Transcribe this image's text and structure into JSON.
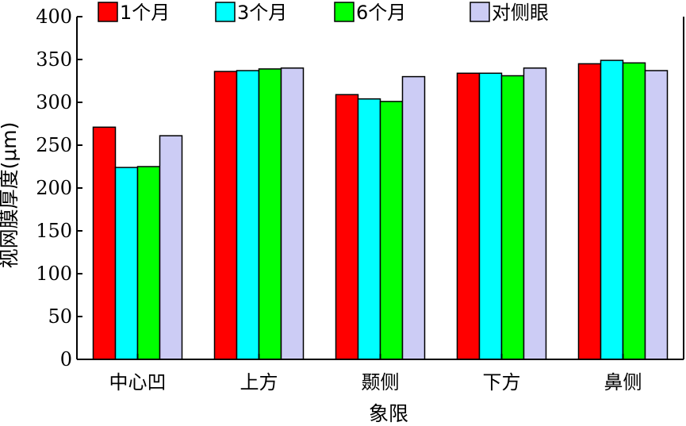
{
  "chart_data": {
    "type": "bar",
    "title": "",
    "xlabel": "象限",
    "ylabel": "视网膜厚度(μm)",
    "ylim": [
      0,
      400
    ],
    "yticks": [
      0,
      50,
      100,
      150,
      200,
      250,
      300,
      350,
      400
    ],
    "categories": [
      "中心凹",
      "上方",
      "颞侧",
      "下方",
      "鼻侧"
    ],
    "legend_position": "top",
    "grid": false,
    "series": [
      {
        "name": "1个月",
        "color": "#ff0000",
        "values": [
          271,
          336,
          309,
          334,
          345
        ]
      },
      {
        "name": "3个月",
        "color": "#00ffff",
        "values": [
          224,
          337,
          304,
          334,
          349
        ]
      },
      {
        "name": "6个月",
        "color": "#00ff00",
        "values": [
          225,
          339,
          301,
          331,
          346
        ]
      },
      {
        "name": "对侧眼",
        "color": "#ccccf5",
        "values": [
          261,
          340,
          330,
          340,
          337
        ]
      }
    ]
  }
}
